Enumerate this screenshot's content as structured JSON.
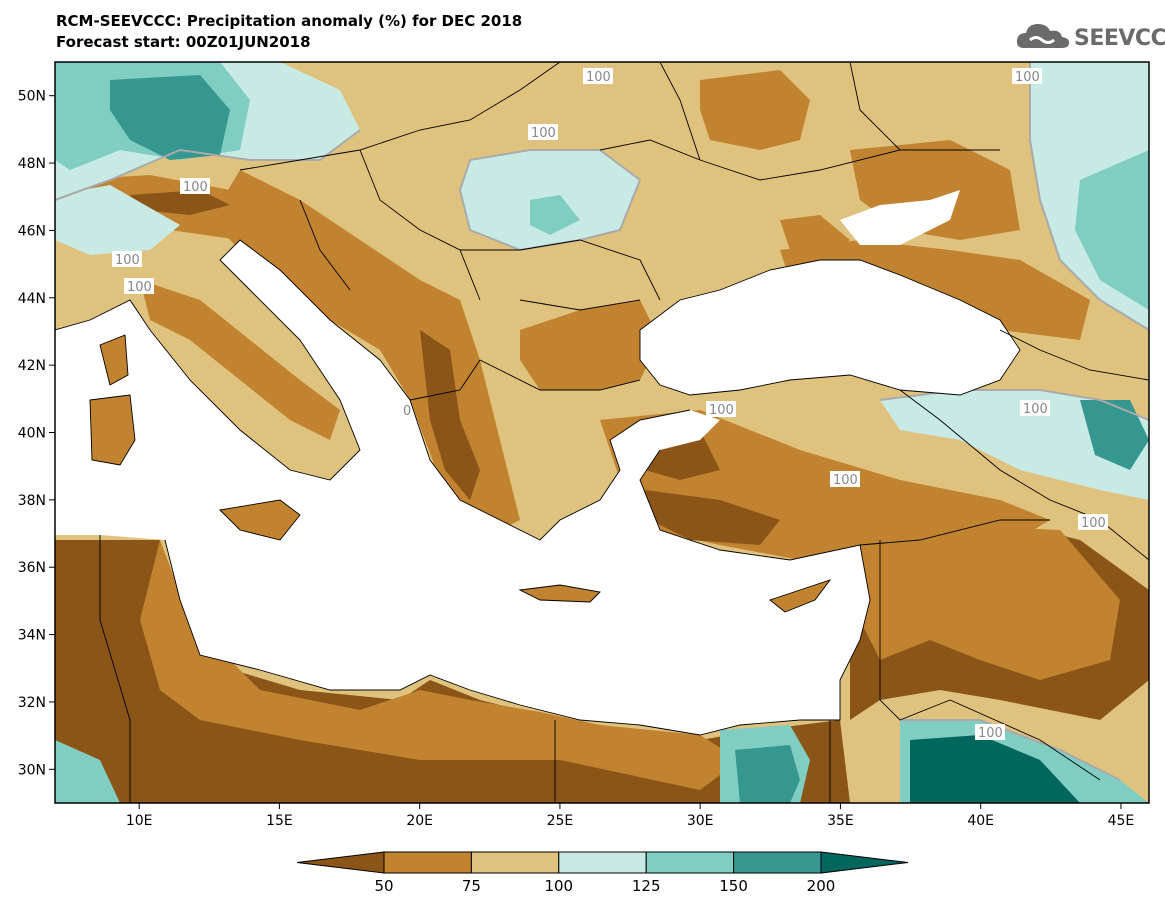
{
  "title_line1": "RCM-SEEVCCC: Precipitation anomaly (%) for DEC 2018",
  "title_line2": "Forecast start: 00Z01JUN2018",
  "logo_text": "SEEVCCC",
  "map": {
    "lon_range": [
      7,
      46
    ],
    "lat_range": [
      29,
      51
    ],
    "lon_ticks": [
      "10E",
      "15E",
      "20E",
      "25E",
      "30E",
      "35E",
      "40E",
      "45E"
    ],
    "lat_ticks": [
      "50N",
      "48N",
      "46N",
      "44N",
      "42N",
      "40N",
      "38N",
      "36N",
      "34N",
      "32N",
      "30N"
    ],
    "contour_labels": [
      "100",
      "100",
      "100",
      "100",
      "100",
      "100",
      "100",
      "100",
      "100",
      "100",
      "100",
      "0"
    ]
  },
  "colorbar": {
    "levels": [
      "50",
      "75",
      "100",
      "125",
      "150",
      "200"
    ],
    "colors": [
      "#8b5518",
      "#c18330",
      "#dfc27d",
      "#c7eae5",
      "#80cdc1",
      "#35978f",
      "#01665e"
    ]
  },
  "palette": {
    "sea": "#ffffff",
    "border": "#000000",
    "contour_100": "#aaaaaa"
  }
}
